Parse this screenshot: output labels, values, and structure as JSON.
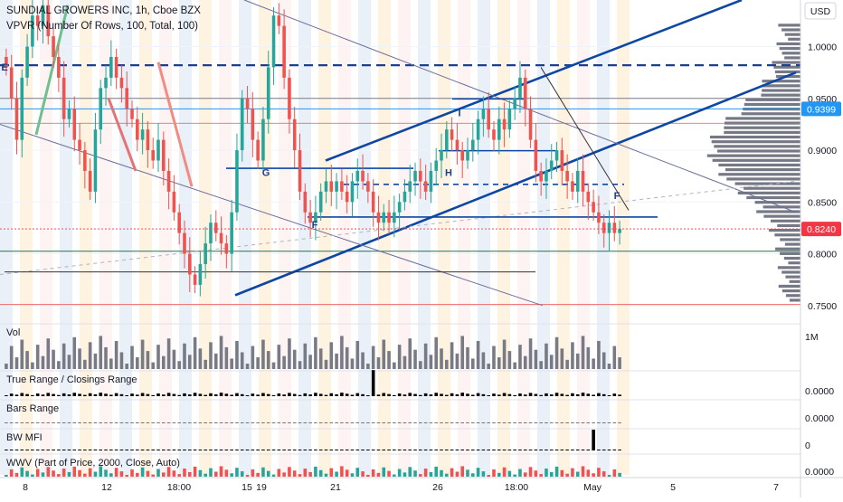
{
  "header": {
    "title": "SUNDIAL GROWERS INC, 1h, Cboe BZX",
    "indicator": "VPVR (Number Of Rows, 100, Total, 100)",
    "currency_button": "USD"
  },
  "colors": {
    "up": "#26a69a",
    "down": "#ef5350",
    "trend": "#0d47a1",
    "hline": "#1e3f8f",
    "band_orange": "#fde7c8",
    "band_blue": "#d7e3f3",
    "band_pink": "#fbeaea",
    "volume_bar": "#787b86",
    "price_badge": "#f23645",
    "level_badge": "#2196f3"
  },
  "chart_data": {
    "type": "candlestick",
    "price_axis": {
      "ticks": [
        "1.0000",
        "0.9500",
        "0.9000",
        "0.8500",
        "0.8000",
        "0.7500"
      ],
      "range": [
        0.735,
        1.045
      ]
    },
    "time_axis": {
      "ticks": [
        "8",
        "12",
        "18:00",
        "15",
        "19",
        "21",
        "26",
        "18:00",
        "May",
        "5",
        "7"
      ]
    },
    "badges": {
      "current_price": "0.8240",
      "level": "0.9399"
    },
    "horizontal_levels": [
      {
        "price": 0.982,
        "style": "dashed-blue"
      },
      {
        "price": 0.95,
        "style": "thin-gray"
      },
      {
        "price": 0.9399,
        "style": "thin-blue"
      },
      {
        "price": 0.926,
        "style": "thin-red"
      },
      {
        "price": 0.8025,
        "style": "thin-green"
      },
      {
        "price": 0.751,
        "style": "thin-red"
      }
    ],
    "pattern_labels": [
      "E",
      "G",
      "F",
      "H",
      "I",
      "F"
    ],
    "price_series": {
      "name": "SNDL",
      "close": [
        0.98,
        0.95,
        0.91,
        0.97,
        1.0,
        1.03,
        1.02,
        1.04,
        1.01,
        0.99,
        0.97,
        0.93,
        0.94,
        0.91,
        0.9,
        0.88,
        0.86,
        0.92,
        0.96,
        0.97,
        0.99,
        0.97,
        0.96,
        0.94,
        0.93,
        0.91,
        0.92,
        0.9,
        0.89,
        0.91,
        0.88,
        0.86,
        0.84,
        0.82,
        0.8,
        0.78,
        0.77,
        0.79,
        0.81,
        0.83,
        0.82,
        0.81,
        0.8,
        0.84,
        0.9,
        0.95,
        0.94,
        0.91,
        0.89,
        0.93,
        0.98,
        1.03,
        1.02,
        0.97,
        0.93,
        0.9,
        0.86,
        0.84,
        0.83,
        0.84,
        0.86,
        0.87,
        0.86,
        0.87,
        0.86,
        0.85,
        0.87,
        0.88,
        0.87,
        0.86,
        0.84,
        0.83,
        0.84,
        0.83,
        0.84,
        0.85,
        0.86,
        0.87,
        0.88,
        0.87,
        0.86,
        0.88,
        0.89,
        0.9,
        0.92,
        0.91,
        0.9,
        0.89,
        0.9,
        0.91,
        0.93,
        0.94,
        0.92,
        0.91,
        0.93,
        0.92,
        0.94,
        0.95,
        0.97,
        0.94,
        0.91,
        0.88,
        0.87,
        0.88,
        0.89,
        0.9,
        0.88,
        0.87,
        0.86,
        0.88,
        0.86,
        0.85,
        0.84,
        0.83,
        0.82,
        0.83,
        0.82,
        0.824
      ]
    },
    "panels": [
      {
        "title": "Vol",
        "scale": "1M"
      },
      {
        "title": "True Range / Closings Range",
        "scale": "0.0000"
      },
      {
        "title": "Bars Range",
        "scale": "0.0000"
      },
      {
        "title": "BW MFI",
        "scale": "0"
      },
      {
        "title": "WWV (Part of Price, 2000, Close, Auto)",
        "scale": "0.0000"
      }
    ]
  }
}
